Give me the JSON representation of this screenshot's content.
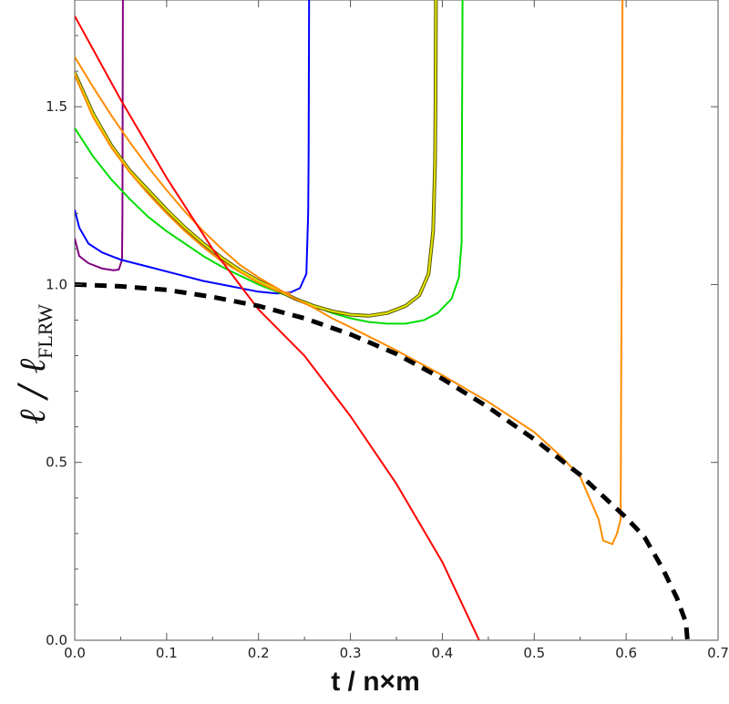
{
  "chart_data": {
    "type": "line",
    "title": "",
    "xlabel": "t / n×m",
    "ylabel": {
      "main": "ℓ / ℓ",
      "subscript": "FLRW"
    },
    "xlim": [
      0,
      0.7
    ],
    "ylim": [
      0,
      1.8
    ],
    "xticks": [
      0.0,
      0.1,
      0.2,
      0.3,
      0.4,
      0.5,
      0.6,
      0.7
    ],
    "xtick_labels": [
      "0.0",
      "0.1",
      "0.2",
      "0.3",
      "0.4",
      "0.5",
      "0.6",
      "0.7"
    ],
    "yticks": [
      0.0,
      0.5,
      1.0,
      1.5
    ],
    "ytick_labels": [
      "0.0",
      "0.5",
      "1.0",
      "1.5"
    ],
    "grid": false,
    "legend": "none",
    "series": [
      {
        "name": "purple",
        "color": "#800080",
        "points": [
          [
            0,
            1.13
          ],
          [
            0.005,
            1.08
          ],
          [
            0.015,
            1.06
          ],
          [
            0.03,
            1.045
          ],
          [
            0.042,
            1.04
          ],
          [
            0.048,
            1.042
          ],
          [
            0.0515,
            1.07
          ],
          [
            0.052,
            1.2
          ],
          [
            0.0522,
            1.5
          ],
          [
            0.0525,
            1.8
          ]
        ]
      },
      {
        "name": "blue",
        "color": "#0000ff",
        "points": [
          [
            0,
            1.21
          ],
          [
            0.005,
            1.16
          ],
          [
            0.015,
            1.115
          ],
          [
            0.03,
            1.09
          ],
          [
            0.05,
            1.07
          ],
          [
            0.08,
            1.05
          ],
          [
            0.11,
            1.03
          ],
          [
            0.14,
            1.01
          ],
          [
            0.17,
            0.995
          ],
          [
            0.2,
            0.98
          ],
          [
            0.22,
            0.975
          ],
          [
            0.235,
            0.978
          ],
          [
            0.245,
            0.99
          ],
          [
            0.252,
            1.03
          ],
          [
            0.254,
            1.2
          ],
          [
            0.2545,
            1.37
          ],
          [
            0.255,
            1.8
          ]
        ]
      },
      {
        "name": "green",
        "color": "#00dd00",
        "points": [
          [
            0,
            1.44
          ],
          [
            0.02,
            1.36
          ],
          [
            0.04,
            1.295
          ],
          [
            0.06,
            1.24
          ],
          [
            0.08,
            1.19
          ],
          [
            0.1,
            1.15
          ],
          [
            0.12,
            1.115
          ],
          [
            0.14,
            1.08
          ],
          [
            0.16,
            1.05
          ],
          [
            0.18,
            1.025
          ],
          [
            0.2,
            1.0
          ],
          [
            0.22,
            0.98
          ],
          [
            0.24,
            0.96
          ],
          [
            0.26,
            0.94
          ],
          [
            0.28,
            0.92
          ],
          [
            0.3,
            0.905
          ],
          [
            0.32,
            0.895
          ],
          [
            0.34,
            0.89
          ],
          [
            0.36,
            0.89
          ],
          [
            0.38,
            0.9
          ],
          [
            0.395,
            0.92
          ],
          [
            0.41,
            0.96
          ],
          [
            0.418,
            1.02
          ],
          [
            0.421,
            1.12
          ],
          [
            0.4215,
            1.5
          ],
          [
            0.422,
            1.8
          ]
        ]
      },
      {
        "name": "yellow",
        "color": "#e6e600",
        "outline": "#555500",
        "points": [
          [
            0,
            1.595
          ],
          [
            0.02,
            1.48
          ],
          [
            0.04,
            1.39
          ],
          [
            0.06,
            1.32
          ],
          [
            0.08,
            1.265
          ],
          [
            0.1,
            1.21
          ],
          [
            0.12,
            1.16
          ],
          [
            0.14,
            1.115
          ],
          [
            0.16,
            1.075
          ],
          [
            0.18,
            1.04
          ],
          [
            0.2,
            1.01
          ],
          [
            0.22,
            0.985
          ],
          [
            0.24,
            0.96
          ],
          [
            0.26,
            0.94
          ],
          [
            0.28,
            0.925
          ],
          [
            0.3,
            0.915
          ],
          [
            0.32,
            0.912
          ],
          [
            0.34,
            0.92
          ],
          [
            0.36,
            0.94
          ],
          [
            0.375,
            0.97
          ],
          [
            0.385,
            1.03
          ],
          [
            0.39,
            1.15
          ],
          [
            0.392,
            1.34
          ],
          [
            0.3925,
            1.5
          ],
          [
            0.393,
            1.8
          ]
        ]
      },
      {
        "name": "orange",
        "color": "#ff8c00",
        "points": [
          [
            0,
            1.64
          ],
          [
            0.02,
            1.555
          ],
          [
            0.04,
            1.475
          ],
          [
            0.06,
            1.4
          ],
          [
            0.08,
            1.33
          ],
          [
            0.1,
            1.265
          ],
          [
            0.12,
            1.205
          ],
          [
            0.14,
            1.15
          ],
          [
            0.16,
            1.1
          ],
          [
            0.18,
            1.055
          ],
          [
            0.2,
            1.02
          ],
          [
            0.22,
            0.99
          ],
          [
            0.24,
            0.96
          ],
          [
            0.26,
            0.935
          ],
          [
            0.28,
            0.905
          ],
          [
            0.3,
            0.88
          ],
          [
            0.35,
            0.815
          ],
          [
            0.4,
            0.745
          ],
          [
            0.45,
            0.67
          ],
          [
            0.5,
            0.585
          ],
          [
            0.53,
            0.515
          ],
          [
            0.55,
            0.46
          ],
          [
            0.56,
            0.4
          ],
          [
            0.57,
            0.34
          ],
          [
            0.575,
            0.28
          ],
          [
            0.585,
            0.27
          ],
          [
            0.59,
            0.3
          ],
          [
            0.594,
            0.34
          ],
          [
            0.595,
            1.0
          ],
          [
            0.596,
            1.8
          ]
        ]
      },
      {
        "name": "orange-2",
        "color": "#ff8c00",
        "points": [
          [
            0,
            1.59
          ],
          [
            0.02,
            1.47
          ],
          [
            0.04,
            1.385
          ],
          [
            0.06,
            1.315
          ],
          [
            0.08,
            1.255
          ],
          [
            0.1,
            1.2
          ],
          [
            0.12,
            1.15
          ],
          [
            0.14,
            1.105
          ],
          [
            0.16,
            1.065
          ],
          [
            0.18,
            1.035
          ],
          [
            0.2,
            1.005
          ],
          [
            0.22,
            0.982
          ],
          [
            0.235,
            0.975
          ]
        ]
      },
      {
        "name": "red",
        "color": "#ff0000",
        "points": [
          [
            0,
            1.755
          ],
          [
            0.05,
            1.52
          ],
          [
            0.1,
            1.3
          ],
          [
            0.15,
            1.1
          ],
          [
            0.2,
            0.93
          ],
          [
            0.25,
            0.8
          ],
          [
            0.3,
            0.63
          ],
          [
            0.35,
            0.44
          ],
          [
            0.4,
            0.22
          ],
          [
            0.44,
            0.0
          ]
        ]
      },
      {
        "name": "FLRW",
        "color": "#000000",
        "dashed": true,
        "points": [
          [
            0,
            1.0
          ],
          [
            0.05,
            0.995
          ],
          [
            0.1,
            0.985
          ],
          [
            0.15,
            0.965
          ],
          [
            0.2,
            0.94
          ],
          [
            0.25,
            0.905
          ],
          [
            0.3,
            0.86
          ],
          [
            0.35,
            0.805
          ],
          [
            0.4,
            0.735
          ],
          [
            0.45,
            0.655
          ],
          [
            0.5,
            0.565
          ],
          [
            0.55,
            0.465
          ],
          [
            0.6,
            0.345
          ],
          [
            0.62,
            0.29
          ],
          [
            0.64,
            0.2
          ],
          [
            0.655,
            0.12
          ],
          [
            0.665,
            0.05
          ],
          [
            0.6667,
            0.0
          ]
        ]
      }
    ]
  }
}
